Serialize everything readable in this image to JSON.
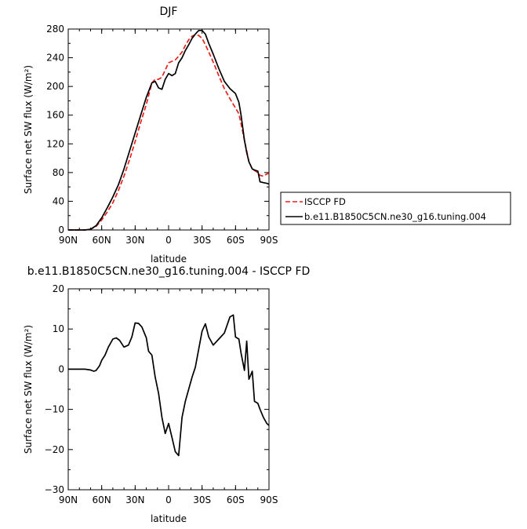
{
  "chart_data": [
    {
      "type": "line",
      "title": "DJF",
      "xlabel": "latitude",
      "ylabel": "Surface net SW flux (W/m²)",
      "xlim": [
        -90,
        90
      ],
      "ylim": [
        0,
        280
      ],
      "x_ticks": [
        "90N",
        "60N",
        "30N",
        "0",
        "30S",
        "60S",
        "90S"
      ],
      "y_ticks": [
        "0",
        "40",
        "80",
        "120",
        "160",
        "200",
        "240",
        "280"
      ],
      "grid": false,
      "legend_position": "right",
      "series": [
        {
          "name": "ISCCP FD",
          "color": "#e8201c",
          "dash": "dashed",
          "x": [
            -90,
            -85,
            -80,
            -75,
            -70,
            -65,
            -60,
            -55,
            -50,
            -45,
            -40,
            -35,
            -30,
            -25,
            -20,
            -15,
            -12,
            -9,
            -6,
            -3,
            0,
            3,
            6,
            9,
            12,
            15,
            18,
            21,
            24,
            27,
            30,
            33,
            36,
            40,
            45,
            50,
            55,
            60,
            63,
            65,
            68,
            70,
            72,
            75,
            78,
            80,
            82,
            85,
            88,
            90
          ],
          "y": [
            0,
            0,
            0,
            0,
            1,
            5,
            14,
            25,
            38,
            55,
            75,
            98,
            123,
            150,
            175,
            205,
            210,
            210,
            213,
            223,
            233,
            235,
            237,
            242,
            248,
            257,
            265,
            270,
            272,
            271,
            267,
            258,
            248,
            234,
            215,
            197,
            183,
            170,
            162,
            148,
            125,
            110,
            95,
            85,
            82,
            80,
            76,
            75,
            78,
            79
          ]
        },
        {
          "name": "b.e11.B1850C5CN.ne30_g16.tuning.004",
          "color": "#000000",
          "dash": "solid",
          "x": [
            -90,
            -85,
            -80,
            -75,
            -70,
            -65,
            -60,
            -55,
            -50,
            -45,
            -40,
            -35,
            -30,
            -25,
            -20,
            -15,
            -12,
            -9,
            -6,
            -3,
            0,
            3,
            6,
            9,
            12,
            15,
            18,
            21,
            24,
            27,
            30,
            33,
            36,
            40,
            45,
            50,
            55,
            60,
            63,
            65,
            68,
            70,
            72,
            75,
            78,
            80,
            82,
            85,
            88,
            90
          ],
          "y": [
            0,
            0,
            0,
            0,
            1,
            6,
            17,
            31,
            46,
            63,
            85,
            110,
            135,
            160,
            185,
            205,
            207,
            198,
            196,
            210,
            218,
            215,
            218,
            233,
            240,
            250,
            258,
            267,
            273,
            278,
            278,
            273,
            260,
            245,
            225,
            207,
            197,
            190,
            178,
            160,
            125,
            108,
            95,
            85,
            83,
            82,
            67,
            66,
            65,
            64
          ]
        }
      ]
    },
    {
      "type": "line",
      "title": "b.e11.B1850C5CN.ne30_g16.tuning.004 - ISCCP FD",
      "xlabel": "latitude",
      "ylabel": "Surface net SW flux (W/m²)",
      "xlim": [
        -90,
        90
      ],
      "ylim": [
        -30,
        20
      ],
      "x_ticks": [
        "90N",
        "60N",
        "30N",
        "0",
        "30S",
        "60S",
        "90S"
      ],
      "y_ticks": [
        "−30",
        "−20",
        "−10",
        "0",
        "10",
        "20"
      ],
      "grid": false,
      "series": [
        {
          "color": "#000000",
          "dash": "solid",
          "x": [
            -90,
            -85,
            -80,
            -75,
            -70,
            -67,
            -65,
            -62,
            -60,
            -57,
            -54,
            -50,
            -47,
            -44,
            -40,
            -36,
            -33,
            -30,
            -27,
            -24,
            -20,
            -18,
            -15,
            -12,
            -9,
            -6,
            -3,
            0,
            3,
            6,
            9,
            12,
            15,
            18,
            21,
            24,
            27,
            30,
            33,
            36,
            40,
            45,
            50,
            55,
            58,
            60,
            63,
            65,
            68,
            70,
            72,
            75,
            77,
            80,
            82,
            85,
            88,
            90
          ],
          "y": [
            0,
            0,
            0,
            0,
            -0.2,
            -0.5,
            -0.3,
            0.8,
            2.2,
            3.5,
            5.5,
            7.5,
            7.8,
            7.2,
            5.5,
            6,
            8,
            11.5,
            11.4,
            10.5,
            7.8,
            4.5,
            3.5,
            -2,
            -6,
            -12,
            -16,
            -13.5,
            -17,
            -20.5,
            -21.5,
            -12,
            -8,
            -5,
            -2,
            0.5,
            5,
            9.5,
            11.3,
            8,
            6,
            7.5,
            9,
            13,
            13.5,
            8,
            7.5,
            4,
            -0.3,
            7,
            -2.5,
            -0.5,
            -8,
            -8.5,
            -10,
            -12,
            -13.5,
            -14
          ]
        }
      ]
    }
  ]
}
